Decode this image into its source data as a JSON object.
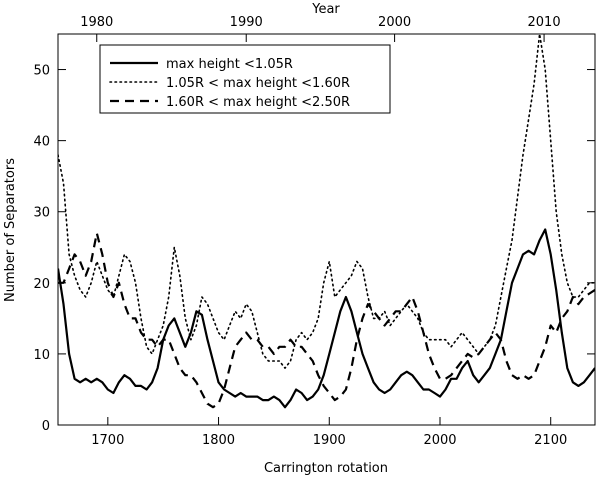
{
  "chart_data": {
    "type": "line",
    "xlabel": "Carrington rotation",
    "ylabel": "Number of Separators",
    "top_axis_label": "Year",
    "xlim": [
      1655,
      2140
    ],
    "ylim": [
      0,
      55
    ],
    "x_ticks": [
      1700,
      1800,
      1900,
      2000,
      2100
    ],
    "y_ticks": [
      0,
      10,
      20,
      30,
      40,
      50
    ],
    "top_ticks": [
      {
        "label": "1980",
        "rotation": 1690
      },
      {
        "label": "1990",
        "rotation": 1825
      },
      {
        "label": "2000",
        "rotation": 1959
      },
      {
        "label": "2010",
        "rotation": 2094
      }
    ],
    "grid": false,
    "legend_position": "top-left",
    "series": [
      {
        "name": "max height <1.05R",
        "style": "solid",
        "x": [
          1655,
          1660,
          1665,
          1670,
          1675,
          1680,
          1685,
          1690,
          1695,
          1700,
          1705,
          1710,
          1715,
          1720,
          1725,
          1730,
          1735,
          1740,
          1745,
          1750,
          1755,
          1760,
          1765,
          1770,
          1775,
          1780,
          1785,
          1790,
          1795,
          1800,
          1805,
          1810,
          1815,
          1820,
          1825,
          1830,
          1835,
          1840,
          1845,
          1850,
          1855,
          1860,
          1865,
          1870,
          1875,
          1880,
          1885,
          1890,
          1895,
          1900,
          1905,
          1910,
          1915,
          1920,
          1925,
          1930,
          1935,
          1940,
          1945,
          1950,
          1955,
          1960,
          1965,
          1970,
          1975,
          1980,
          1985,
          1990,
          1995,
          2000,
          2005,
          2010,
          2015,
          2020,
          2025,
          2030,
          2035,
          2040,
          2045,
          2050,
          2055,
          2060,
          2065,
          2070,
          2075,
          2080,
          2085,
          2090,
          2095,
          2100,
          2105,
          2110,
          2115,
          2120,
          2125,
          2130,
          2135,
          2140
        ],
        "y": [
          22,
          17,
          10,
          6.5,
          6,
          6.5,
          6,
          6.5,
          6,
          5,
          4.5,
          6,
          7,
          6.5,
          5.5,
          5.5,
          5,
          6,
          8,
          12,
          14,
          15,
          13,
          11,
          13,
          16,
          15.5,
          12,
          9,
          6,
          5,
          4.5,
          4,
          4.5,
          4,
          4,
          4,
          3.5,
          3.5,
          4,
          3.5,
          2.5,
          3.5,
          5,
          4.5,
          3.5,
          4,
          5,
          7,
          10,
          13,
          16,
          18,
          16,
          13,
          10,
          8,
          6,
          5,
          4.5,
          5,
          6,
          7,
          7.5,
          7,
          6,
          5,
          5,
          4.5,
          4,
          5,
          6.5,
          6.5,
          8,
          9,
          7,
          6,
          7,
          8,
          10,
          12,
          16,
          20,
          22,
          24,
          24.5,
          24,
          26,
          27.5,
          24,
          19,
          13,
          8,
          6,
          5.5,
          6,
          7,
          8
        ]
      },
      {
        "name": "1.05R < max height <1.60R",
        "style": "dotted",
        "x": [
          1655,
          1660,
          1665,
          1670,
          1675,
          1680,
          1685,
          1690,
          1695,
          1700,
          1705,
          1710,
          1715,
          1720,
          1725,
          1730,
          1735,
          1740,
          1745,
          1750,
          1755,
          1760,
          1765,
          1770,
          1775,
          1780,
          1785,
          1790,
          1795,
          1800,
          1805,
          1810,
          1815,
          1820,
          1825,
          1830,
          1835,
          1840,
          1845,
          1850,
          1855,
          1860,
          1865,
          1870,
          1875,
          1880,
          1885,
          1890,
          1895,
          1900,
          1905,
          1910,
          1915,
          1920,
          1925,
          1930,
          1935,
          1940,
          1945,
          1950,
          1955,
          1960,
          1965,
          1970,
          1975,
          1980,
          1985,
          1990,
          1995,
          2000,
          2005,
          2010,
          2015,
          2020,
          2025,
          2030,
          2035,
          2040,
          2045,
          2050,
          2055,
          2060,
          2065,
          2070,
          2075,
          2080,
          2085,
          2090,
          2095,
          2100,
          2105,
          2110,
          2115,
          2120,
          2125,
          2130,
          2135,
          2140
        ],
        "y": [
          38,
          34,
          24,
          21,
          19,
          18,
          20,
          23,
          21,
          19,
          18,
          21,
          24,
          23,
          20,
          15,
          11,
          10,
          12,
          14,
          18,
          25,
          21,
          15,
          12,
          14,
          18,
          17,
          15,
          13,
          12,
          14,
          16,
          15,
          17,
          16,
          13,
          10,
          9,
          9,
          9,
          8,
          9,
          12,
          13,
          12,
          13,
          15,
          20,
          23,
          18,
          19,
          20,
          21,
          23,
          22,
          18,
          15,
          15,
          16,
          14,
          15,
          16,
          17,
          16,
          15,
          13,
          12,
          12,
          12,
          12,
          11,
          12,
          13,
          12,
          11,
          10,
          11,
          12,
          14,
          18,
          22,
          26,
          32,
          38,
          43,
          48,
          55,
          50,
          40,
          30,
          24,
          20,
          18,
          18,
          19,
          20,
          20
        ]
      },
      {
        "name": "1.60R < max height <2.50R",
        "style": "dashed",
        "x": [
          1655,
          1660,
          1665,
          1670,
          1675,
          1680,
          1685,
          1690,
          1695,
          1700,
          1705,
          1710,
          1715,
          1720,
          1725,
          1730,
          1735,
          1740,
          1745,
          1750,
          1755,
          1760,
          1765,
          1770,
          1775,
          1780,
          1785,
          1790,
          1795,
          1800,
          1805,
          1810,
          1815,
          1820,
          1825,
          1830,
          1835,
          1840,
          1845,
          1850,
          1855,
          1860,
          1865,
          1870,
          1875,
          1880,
          1885,
          1890,
          1895,
          1900,
          1905,
          1910,
          1915,
          1920,
          1925,
          1930,
          1935,
          1940,
          1945,
          1950,
          1955,
          1960,
          1965,
          1970,
          1975,
          1980,
          1985,
          1990,
          1995,
          2000,
          2005,
          2010,
          2015,
          2020,
          2025,
          2030,
          2035,
          2040,
          2045,
          2050,
          2055,
          2060,
          2065,
          2070,
          2075,
          2080,
          2085,
          2090,
          2095,
          2100,
          2105,
          2110,
          2115,
          2120,
          2125,
          2130,
          2135,
          2140
        ],
        "y": [
          20,
          20,
          22,
          24,
          23,
          21,
          23,
          27,
          24,
          20,
          18,
          20,
          17,
          15,
          15,
          13,
          12,
          12,
          11,
          12,
          12,
          10,
          8,
          7,
          7,
          6,
          4.5,
          3,
          2.5,
          3,
          5,
          8,
          11,
          12,
          13,
          12,
          12,
          11,
          11,
          10,
          11,
          11,
          12,
          11,
          11,
          10,
          9,
          7,
          5.5,
          4.5,
          3.5,
          4,
          5,
          8,
          12,
          15,
          17,
          16,
          15,
          14,
          15,
          16,
          16,
          17,
          18,
          16,
          13,
          10,
          8,
          6.5,
          6.5,
          7,
          8,
          9,
          10,
          9.5,
          10,
          11,
          12,
          13,
          12,
          9,
          7,
          6.5,
          7,
          6.5,
          7,
          9,
          11,
          14,
          13,
          15,
          16,
          18,
          17,
          18,
          18.5,
          19
        ]
      }
    ]
  }
}
